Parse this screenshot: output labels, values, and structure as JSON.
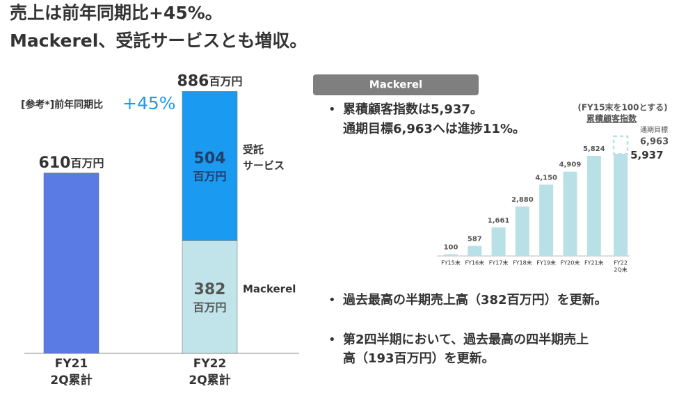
{
  "title": [
    "売上は前年同期比+45%。",
    "Mackerel、受託サービスとも増収。"
  ],
  "chart_data": [
    {
      "type": "stacked-bar",
      "categories": [
        [
          "FY21",
          "2Q累計"
        ],
        [
          "FY22",
          "2Q累計"
        ]
      ],
      "unit": "百万円",
      "totals": [
        610,
        886
      ],
      "series": [
        {
          "color": "#5a7be3",
          "values": [
            610,
            null
          ]
        },
        {
          "name": [
            "Mackerel"
          ],
          "color": "#c1e4ea",
          "values": [
            null,
            382
          ]
        },
        {
          "name": [
            "受託",
            "サービス"
          ],
          "color": "#1a9af0",
          "values": [
            null,
            504
          ]
        }
      ],
      "annotation": {
        "label": "[参考*]前年同期比",
        "value": "+45%"
      },
      "ylim": [
        0,
        900
      ]
    },
    {
      "type": "bar",
      "title": "(FY15末を100とする)",
      "subtitle": "累積顧客指数",
      "categories": [
        [
          "FY15末"
        ],
        [
          "FY16末"
        ],
        [
          "FY17末"
        ],
        [
          "FY18末"
        ],
        [
          "FY19末"
        ],
        [
          "FY20末"
        ],
        [
          "FY21末"
        ],
        [
          "FY22",
          "2Q末"
        ]
      ],
      "values": [
        100,
        587,
        1661,
        2880,
        4150,
        4909,
        5824,
        5937
      ],
      "value_labels": [
        "100",
        "587",
        "1,661",
        "2,880",
        "4,150",
        "4,909",
        "5,824",
        "5,937"
      ],
      "color": "#b9e0e6",
      "target": {
        "label": "通期目標",
        "value": 6963,
        "value_label": "6,963"
      },
      "ylim": [
        0,
        7000
      ]
    }
  ],
  "tag": "Mackerel",
  "bullets": [
    [
      "累積顧客指数は5,937。",
      "通期目標6,963へは進捗11%。"
    ],
    [
      "過去最高の半期売上高（382百万円）を更新。"
    ],
    [
      "第2四半期において、過去最高の四半期売上",
      "高（193百万円）を更新。"
    ]
  ]
}
